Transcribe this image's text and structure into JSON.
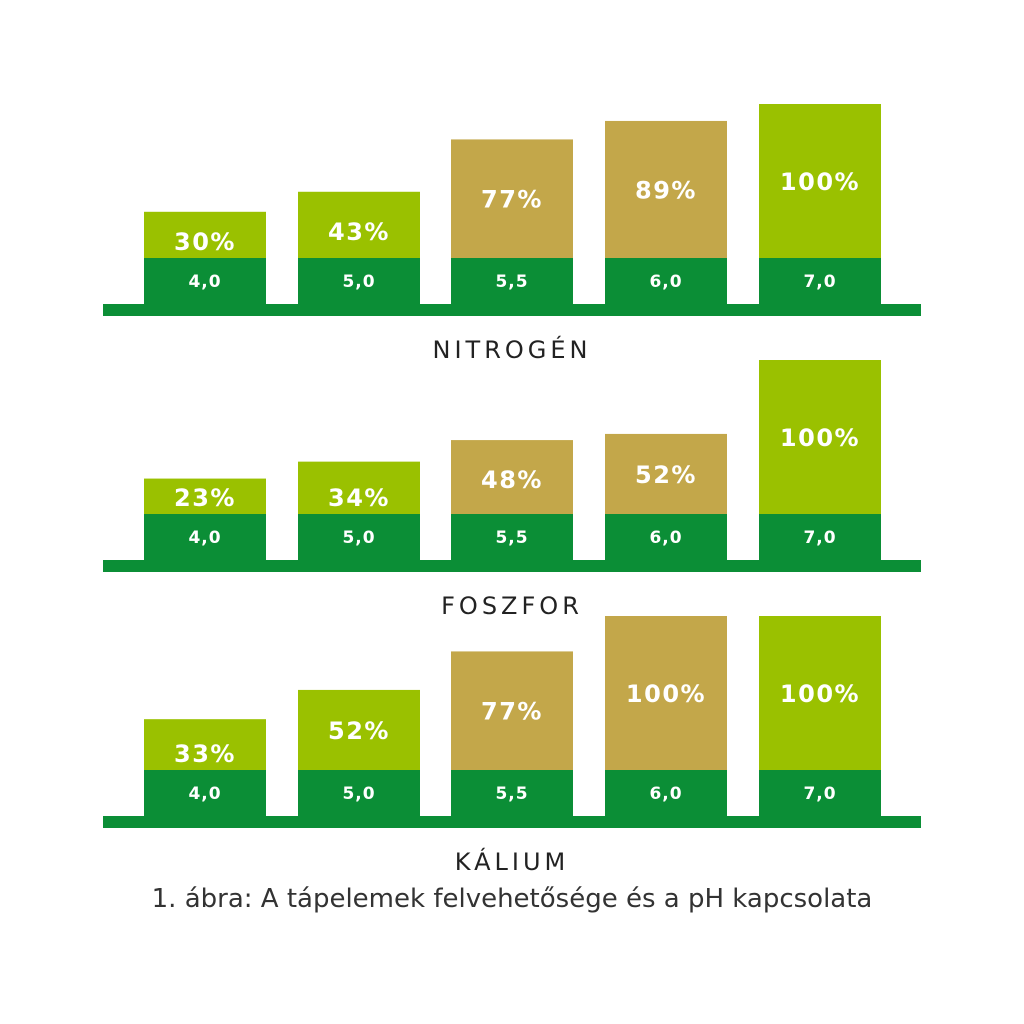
{
  "colors": {
    "base_band": "#0b8e36",
    "bar_green": "#9ac100",
    "bar_tan": "#c3a74a",
    "label_text": "#ffffff",
    "title_text": "#222222"
  },
  "chart_data": [
    {
      "type": "bar",
      "title": "NITROGÉN",
      "categories": [
        "4,0",
        "5,0",
        "5,5",
        "6,0",
        "7,0"
      ],
      "values": [
        30,
        43,
        77,
        89,
        100
      ],
      "value_labels": [
        "30%",
        "43%",
        "77%",
        "89%",
        "100%"
      ],
      "bar_colors": [
        "green",
        "green",
        "tan",
        "tan",
        "green"
      ],
      "ylim": [
        0,
        100
      ]
    },
    {
      "type": "bar",
      "title": "FOSZFOR",
      "categories": [
        "4,0",
        "5,0",
        "5,5",
        "6,0",
        "7,0"
      ],
      "values": [
        23,
        34,
        48,
        52,
        100
      ],
      "value_labels": [
        "23%",
        "34%",
        "48%",
        "52%",
        "100%"
      ],
      "bar_colors": [
        "green",
        "green",
        "tan",
        "tan",
        "green"
      ],
      "ylim": [
        0,
        100
      ]
    },
    {
      "type": "bar",
      "title": "KÁLIUM",
      "categories": [
        "4,0",
        "5,0",
        "5,5",
        "6,0",
        "7,0"
      ],
      "values": [
        33,
        52,
        77,
        100,
        100
      ],
      "value_labels": [
        "33%",
        "52%",
        "77%",
        "100%",
        "100%"
      ],
      "bar_colors": [
        "green",
        "green",
        "tan",
        "tan",
        "green"
      ],
      "ylim": [
        0,
        100
      ]
    }
  ],
  "caption": "1. ábra: A tápelemek felvehetősége és a pH kapcsolata"
}
